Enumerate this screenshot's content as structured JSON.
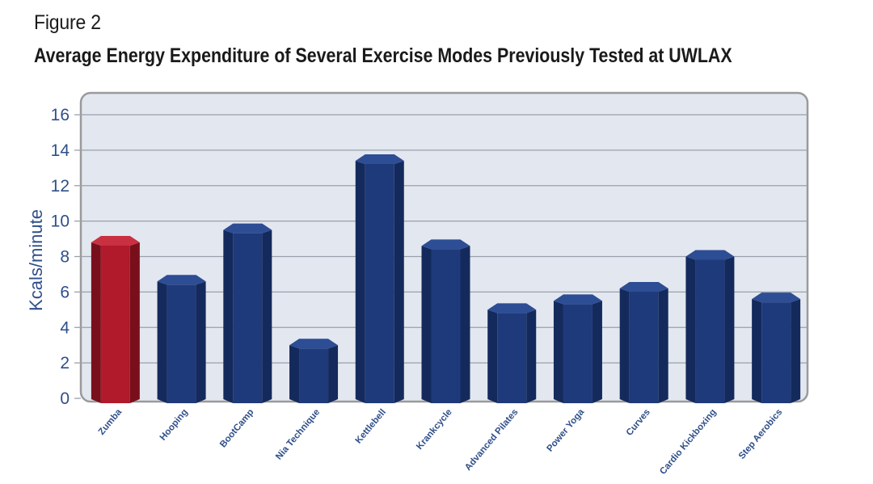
{
  "figure": {
    "label": "Figure 2",
    "title": "Average Energy Expenditure of Several Exercise Modes Previously Tested at UWLAX"
  },
  "colors": {
    "highlight": "#b01a2b",
    "bar": "#1e3a7a",
    "plot_bg": "#e3e7ef",
    "frame": "#9a9a9a",
    "grid": "#9aa0ad",
    "axis_text": "#2f4f8a"
  },
  "chart_data": {
    "type": "bar",
    "title": "Average Energy Expenditure of Several Exercise Modes Previously Tested at UWLAX",
    "xlabel": "",
    "ylabel": "Kcals/minute",
    "ylim": [
      0,
      16
    ],
    "yticks": [
      0,
      2,
      4,
      6,
      8,
      10,
      12,
      14,
      16
    ],
    "grid": true,
    "highlighted_category": "Zumba",
    "categories": [
      "Zumba",
      "Hooping",
      "BootCamp",
      "Nia Technique",
      "Kettlebell",
      "Krankcycle",
      "Advanced Pilates",
      "Power Yoga",
      "Curves",
      "Cardio Kickboxing",
      "Step Aerobics"
    ],
    "values": [
      8.8,
      6.6,
      9.5,
      3.0,
      13.4,
      8.6,
      5.0,
      5.5,
      6.2,
      8.0,
      5.6
    ]
  }
}
